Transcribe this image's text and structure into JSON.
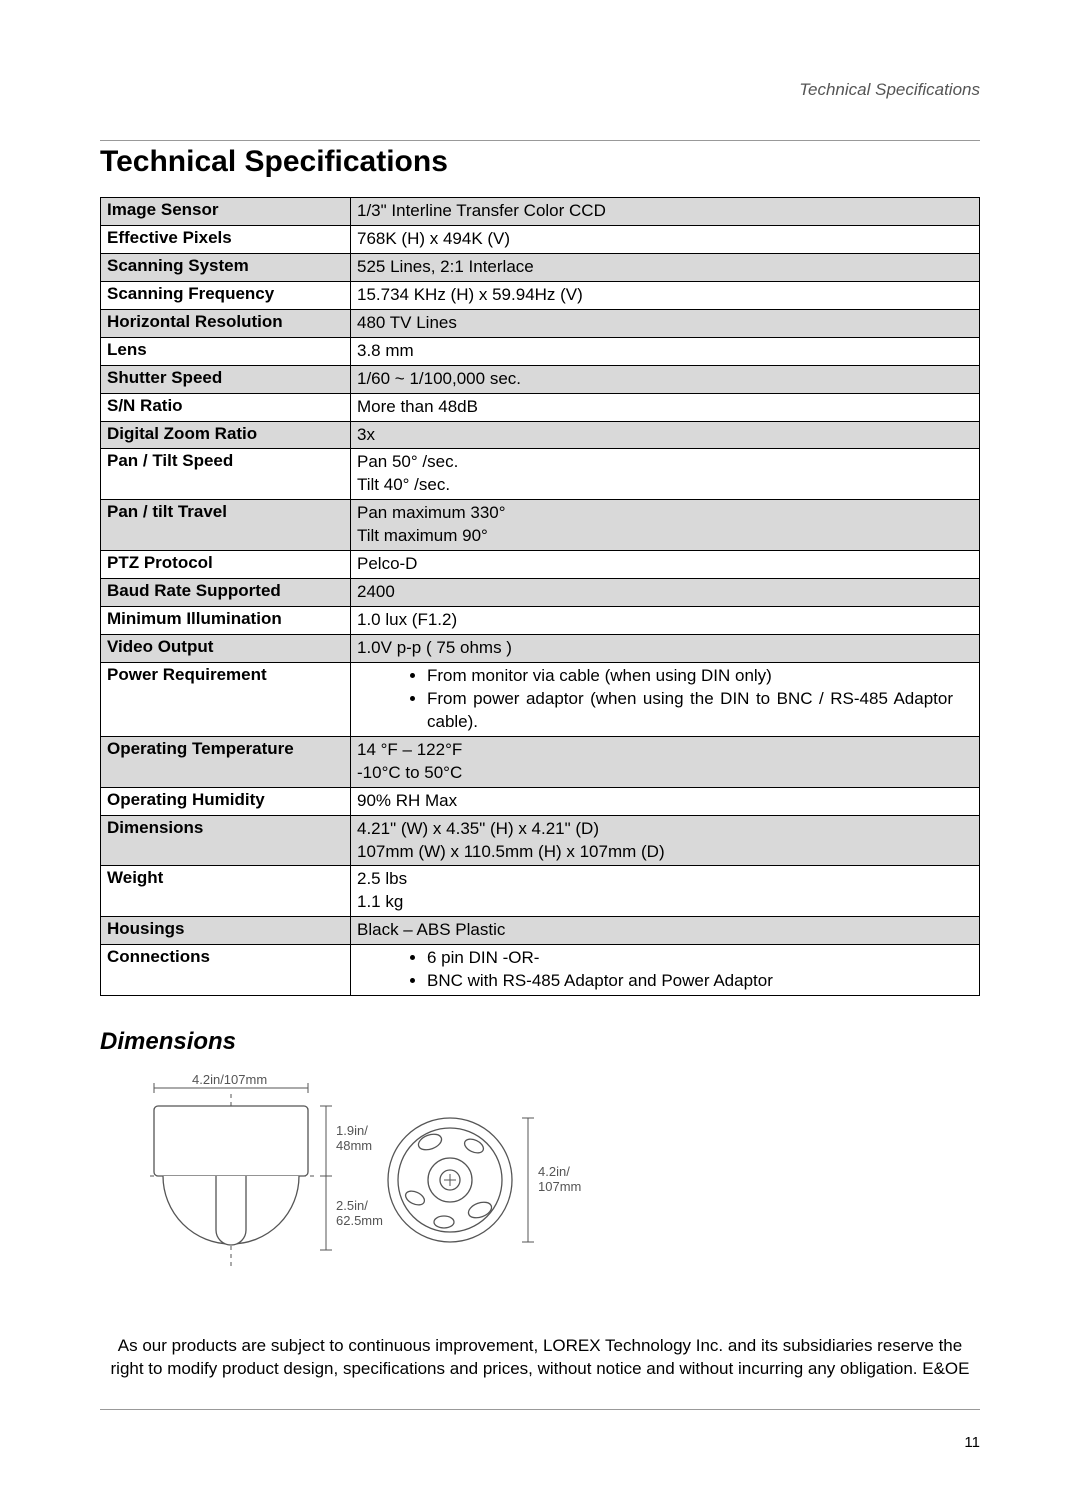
{
  "header": {
    "running_title": "Technical Specifications"
  },
  "title": "Technical Specifications",
  "spec_rows": [
    {
      "label": "Image Sensor",
      "lines": [
        "1/3\" Interline Transfer Color CCD"
      ],
      "shaded": true
    },
    {
      "label": "Effective Pixels",
      "lines": [
        "768K (H) x 494K (V)"
      ],
      "shaded": false
    },
    {
      "label": "Scanning System",
      "lines": [
        "525 Lines, 2:1 Interlace"
      ],
      "shaded": true
    },
    {
      "label": "Scanning Frequency",
      "lines": [
        "15.734 KHz (H) x 59.94Hz (V)"
      ],
      "shaded": false
    },
    {
      "label": "Horizontal Resolution",
      "lines": [
        "480 TV Lines"
      ],
      "shaded": true
    },
    {
      "label": "Lens",
      "lines": [
        "3.8 mm"
      ],
      "shaded": false
    },
    {
      "label": "Shutter Speed",
      "lines": [
        "1/60 ~ 1/100,000 sec."
      ],
      "shaded": true
    },
    {
      "label": "S/N Ratio",
      "lines": [
        "More than 48dB"
      ],
      "shaded": false
    },
    {
      "label": "Digital Zoom Ratio",
      "lines": [
        "3x"
      ],
      "shaded": true
    },
    {
      "label": "Pan / Tilt Speed",
      "lines": [
        "Pan 50° /sec.",
        "Tilt 40° /sec."
      ],
      "shaded": false
    },
    {
      "label": "Pan / tilt Travel",
      "lines": [
        "Pan maximum 330°",
        "Tilt maximum 90°"
      ],
      "shaded": true
    },
    {
      "label": "PTZ Protocol",
      "lines": [
        "Pelco-D"
      ],
      "shaded": false
    },
    {
      "label": "Baud Rate Supported",
      "lines": [
        "2400"
      ],
      "shaded": true
    },
    {
      "label": "Minimum Illumination",
      "lines": [
        "1.0 lux (F1.2)"
      ],
      "shaded": false
    },
    {
      "label": "Video Output",
      "lines": [
        "1.0V p-p ( 75 ohms )"
      ],
      "shaded": true
    },
    {
      "label": "Power Requirement",
      "bullets": [
        "From monitor via cable (when using DIN only)",
        "From power adaptor (when using the DIN to BNC / RS-485 Adaptor cable)."
      ],
      "shaded": false
    },
    {
      "label": "Operating Temperature",
      "lines": [
        "14 °F – 122°F",
        "-10°C to 50°C"
      ],
      "shaded": true
    },
    {
      "label": "Operating Humidity",
      "lines": [
        "90% RH Max"
      ],
      "shaded": false
    },
    {
      "label": "Dimensions",
      "lines": [
        "4.21\" (W) x 4.35\" (H) x 4.21\" (D)",
        "107mm (W) x 110.5mm (H) x 107mm (D)"
      ],
      "shaded": true
    },
    {
      "label": "Weight",
      "lines": [
        "2.5 lbs",
        "1.1 kg"
      ],
      "shaded": false
    },
    {
      "label": "Housings",
      "lines": [
        "Black – ABS Plastic"
      ],
      "shaded": true
    },
    {
      "label": "Connections",
      "bullets": [
        "6 pin DIN  -OR-",
        "BNC  with RS-485 Adaptor and Power Adaptor"
      ],
      "shaded": false
    }
  ],
  "dimensions": {
    "heading": "Dimensions",
    "labels": {
      "width": "4.2in/107mm",
      "top_h": "1.9in/",
      "top_h2": "48mm",
      "bot_h": "2.5in/",
      "bot_h2": "62.5mm",
      "right": "4.2in/",
      "right2": "107mm"
    },
    "colors": {
      "stroke": "#555555"
    }
  },
  "disclaimer": "As our products are subject to continuous improvement, LOREX Technology Inc. and its subsidiaries reserve the right to modify product design, specifications and prices, without notice and without incurring any obligation. E&OE",
  "page_number": "11"
}
